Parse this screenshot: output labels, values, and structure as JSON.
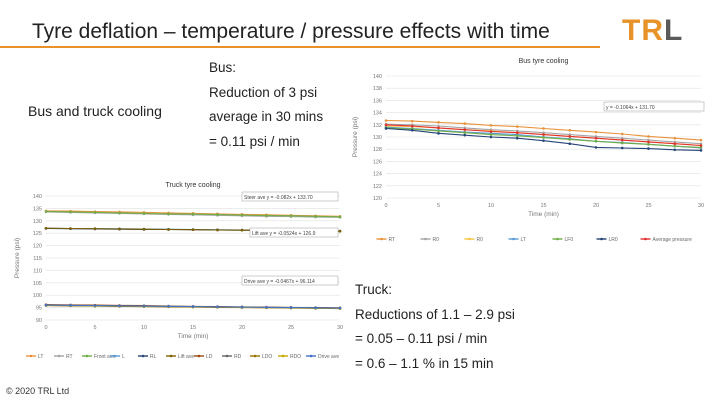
{
  "slide": {
    "title": "Tyre deflation – temperature / pressure effects with time",
    "logo": {
      "t": "T",
      "r": "R",
      "l": "L"
    },
    "left_heading": "Bus and truck cooling",
    "bus_notes": [
      "Bus:",
      "Reduction of 3 psi",
      "average in 30 mins",
      "= 0.11 psi / min"
    ],
    "truck_notes": [
      "Truck:",
      "Reductions of 1.1 – 2.9 psi",
      "= 0.05 – 0.11 psi / min",
      "= 0.6 – 1.1 % in 15 min"
    ],
    "copyright": "© 2020 TRL Ltd"
  },
  "colors": {
    "accent": "#e8922a",
    "logo_grey": "#5a5a5a"
  },
  "chart_data": [
    {
      "type": "line",
      "title": "Bus tyre cooling",
      "xlabel": "Time (min)",
      "ylabel": "Pressure (psi)",
      "xlim": [
        0,
        30
      ],
      "ylim": [
        120,
        140
      ],
      "xticks": [
        0,
        5,
        10,
        15,
        20,
        25,
        30
      ],
      "yticks": [
        120,
        122,
        124,
        126,
        128,
        130,
        132,
        134,
        136,
        138,
        140
      ],
      "grid": true,
      "legend_position": "bottom",
      "x": [
        0,
        2.5,
        5,
        7.5,
        10,
        12.5,
        15,
        17.5,
        20,
        22.5,
        25,
        27.5,
        30
      ],
      "series": [
        {
          "name": "RT",
          "color": "#e8923a",
          "values": [
            132.7,
            132.6,
            132.4,
            132.2,
            131.9,
            131.7,
            131.4,
            131.1,
            130.8,
            130.5,
            130.1,
            129.8,
            129.5
          ]
        },
        {
          "name": "R0",
          "color": "#a5a5a5",
          "values": [
            132.1,
            132.0,
            131.8,
            131.5,
            131.2,
            131.0,
            130.7,
            130.4,
            130.1,
            129.8,
            129.5,
            129.2,
            128.9
          ]
        },
        {
          "name": "R0",
          "color": "#f5c242",
          "values": [
            131.8,
            131.7,
            131.5,
            131.2,
            131.0,
            130.7,
            130.4,
            130.1,
            129.8,
            129.5,
            129.2,
            128.9,
            128.6
          ]
        },
        {
          "name": "LT",
          "color": "#5b9bd5",
          "values": [
            131.6,
            131.4,
            131.1,
            130.8,
            130.6,
            130.4,
            130.0,
            129.7,
            129.3,
            129.1,
            128.8,
            128.5,
            128.2
          ]
        },
        {
          "name": "LF0",
          "color": "#70ad47",
          "values": [
            131.5,
            131.3,
            131.0,
            130.7,
            130.4,
            130.2,
            129.9,
            129.6,
            129.3,
            129.0,
            128.8,
            128.5,
            128.3
          ]
        },
        {
          "name": "LR0",
          "color": "#264478",
          "values": [
            131.4,
            131.1,
            130.6,
            130.3,
            130.0,
            129.8,
            129.4,
            128.9,
            128.3,
            128.2,
            128.1,
            127.9,
            127.8
          ]
        },
        {
          "name": "Average pressure",
          "color": "#e03030",
          "values": [
            132.0,
            131.8,
            131.5,
            131.2,
            130.9,
            130.7,
            130.4,
            130.1,
            129.8,
            129.5,
            129.2,
            128.9,
            128.6
          ]
        }
      ],
      "annotations": [
        "y = -0.1064x + 131.70"
      ]
    },
    {
      "type": "line",
      "title": "Truck tyre cooling",
      "xlabel": "Time (min)",
      "ylabel": "Pressure (psi)",
      "xlim": [
        0,
        30
      ],
      "ylim": [
        90,
        140
      ],
      "xticks": [
        0,
        5,
        10,
        15,
        20,
        25,
        30
      ],
      "yticks": [
        90,
        95,
        100,
        105,
        110,
        115,
        120,
        125,
        130,
        135,
        140
      ],
      "grid": true,
      "legend_position": "bottom",
      "x": [
        0,
        2.5,
        5,
        7.5,
        10,
        12.5,
        15,
        17.5,
        20,
        22.5,
        25,
        27.5,
        30
      ],
      "series": [
        {
          "name": "LT",
          "color": "#e8923a",
          "values": [
            134.0,
            133.9,
            133.7,
            133.6,
            133.4,
            133.2,
            133.0,
            132.8,
            132.6,
            132.4,
            132.2,
            132.0,
            131.8
          ]
        },
        {
          "name": "RT",
          "color": "#a5a5a5",
          "values": [
            133.6,
            133.4,
            133.2,
            133.0,
            132.8,
            132.6,
            132.4,
            132.2,
            132.0,
            131.8,
            131.7,
            131.5,
            131.4
          ]
        },
        {
          "name": "Front ave",
          "color": "#70ad47",
          "values": [
            133.8,
            133.6,
            133.4,
            133.2,
            133.0,
            132.8,
            132.7,
            132.5,
            132.3,
            132.1,
            132.0,
            131.8,
            131.6
          ]
        },
        {
          "name": "L",
          "color": "#5b9bd5",
          "values": [
            127.0,
            126.9,
            126.9,
            126.8,
            126.7,
            126.6,
            126.5,
            126.4,
            126.3,
            126.2,
            126.1,
            126.0,
            125.9
          ]
        },
        {
          "name": "RL",
          "color": "#264478",
          "values": [
            126.9,
            126.8,
            126.7,
            126.6,
            126.5,
            126.5,
            126.4,
            126.3,
            126.2,
            126.1,
            126.0,
            125.9,
            125.8
          ]
        },
        {
          "name": "Lift ave",
          "color": "#7f6000",
          "values": [
            127.0,
            126.9,
            126.8,
            126.7,
            126.6,
            126.5,
            126.4,
            126.3,
            126.2,
            126.1,
            126.0,
            125.9,
            125.8
          ]
        },
        {
          "name": "LD",
          "color": "#9e480e",
          "values": [
            96.2,
            96.1,
            96.0,
            95.9,
            95.8,
            95.6,
            95.5,
            95.4,
            95.3,
            95.2,
            95.1,
            95.0,
            94.9
          ]
        },
        {
          "name": "RD",
          "color": "#636363",
          "values": [
            96.0,
            95.9,
            95.8,
            95.7,
            95.6,
            95.5,
            95.4,
            95.3,
            95.2,
            95.1,
            95.0,
            94.9,
            94.8
          ]
        },
        {
          "name": "LDO",
          "color": "#997300",
          "values": [
            95.8,
            95.7,
            95.6,
            95.5,
            95.4,
            95.3,
            95.2,
            95.1,
            95.0,
            94.9,
            94.8,
            94.7,
            94.6
          ]
        },
        {
          "name": "RDO",
          "color": "#c9a800",
          "values": [
            95.9,
            95.8,
            95.7,
            95.6,
            95.5,
            95.4,
            95.3,
            95.2,
            95.1,
            95.0,
            94.9,
            94.8,
            94.7
          ]
        },
        {
          "name": "Drive ave",
          "color": "#4472c4",
          "values": [
            96.0,
            95.9,
            95.8,
            95.7,
            95.6,
            95.5,
            95.4,
            95.3,
            95.2,
            95.1,
            95.0,
            94.9,
            94.8
          ]
        }
      ],
      "annotations": [
        "Steer ave y = -0.082x + 133.70",
        "Lift ave y = -0.0524x + 126.9",
        "Drive ave y = -0.0467x + 96.114"
      ]
    }
  ]
}
